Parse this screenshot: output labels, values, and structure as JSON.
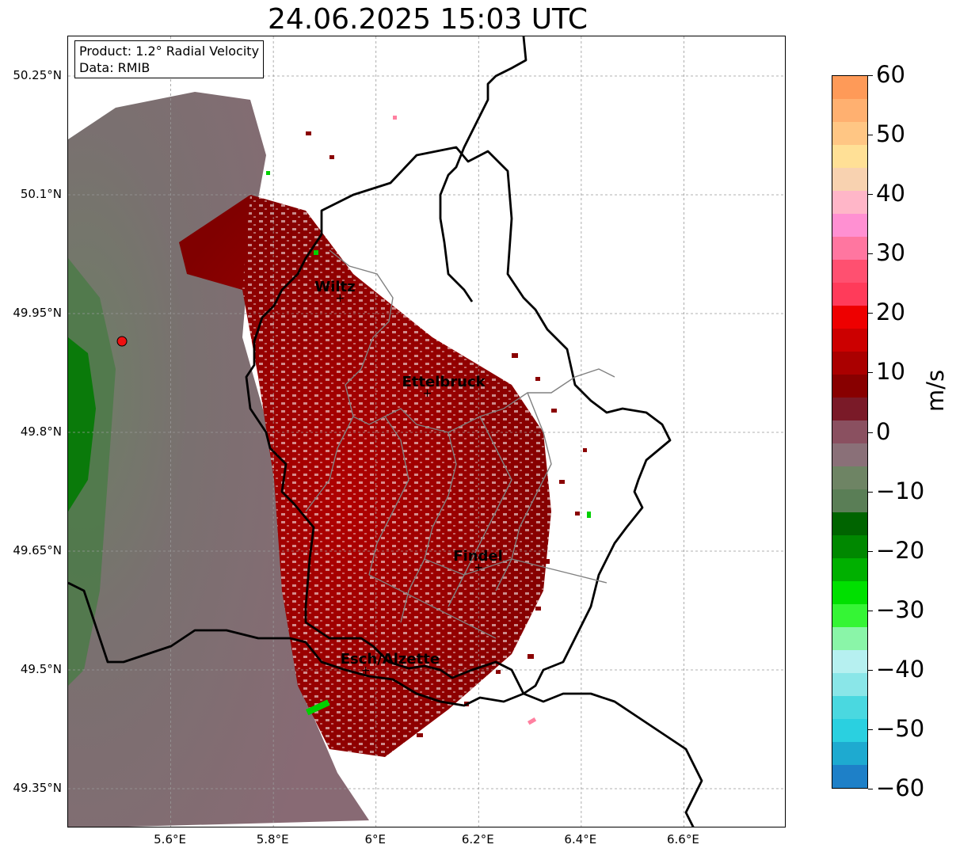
{
  "title": "24.06.2025 15:03 UTC",
  "info": {
    "product": "Product: 1.2° Radial Velocity",
    "data_source": "Data: RMIB"
  },
  "axes": {
    "lat_ticks": [
      "50.25°N",
      "50.1°N",
      "49.95°N",
      "49.8°N",
      "49.65°N",
      "49.5°N",
      "49.35°N"
    ],
    "lon_ticks": [
      "5.6°E",
      "5.8°E",
      "6°E",
      "6.2°E",
      "6.4°E",
      "6.6°E"
    ],
    "lon_range": [
      5.4,
      6.8
    ],
    "lat_range": [
      49.3,
      50.3
    ],
    "grid": true
  },
  "cities": [
    {
      "name": "Wiltz",
      "lon": 5.93,
      "lat": 49.97
    },
    {
      "name": "Ettelbruck",
      "lon": 6.1,
      "lat": 49.85
    },
    {
      "name": "Findel",
      "lon": 6.2,
      "lat": 49.63
    },
    {
      "name": "Esch/Alzette",
      "lon": 5.98,
      "lat": 49.5
    }
  ],
  "radar_site": {
    "lon": 5.505,
    "lat": 49.915,
    "color": "#ee1111"
  },
  "colorbar": {
    "label": "m/s",
    "range": [
      -60,
      60
    ],
    "ticks": [
      "60",
      "50",
      "40",
      "30",
      "20",
      "10",
      "0",
      "−10",
      "−20",
      "−30",
      "−40",
      "−50",
      "−60"
    ],
    "tick_values": [
      60,
      50,
      40,
      30,
      20,
      10,
      0,
      -10,
      -20,
      -30,
      -40,
      -50,
      -60
    ],
    "colors_top_to_bottom": [
      "#fe9a58",
      "#ffb070",
      "#ffc684",
      "#ffe096",
      "#f8d2b0",
      "#ffb6c8",
      "#ff90d2",
      "#ff76a0",
      "#ff5070",
      "#ff3b5a",
      "#ee0000",
      "#cc0000",
      "#aa0000",
      "#880000",
      "#7a1a28",
      "#8a5060",
      "#8a7078",
      "#6e8464",
      "#5a7e56",
      "#006400",
      "#008800",
      "#00b000",
      "#00e000",
      "#35f535",
      "#8af5a8",
      "#b6f0f0",
      "#8ae6e8",
      "#4ad8e0",
      "#2ad0e0",
      "#1eaad0",
      "#1e80c8"
    ]
  }
}
